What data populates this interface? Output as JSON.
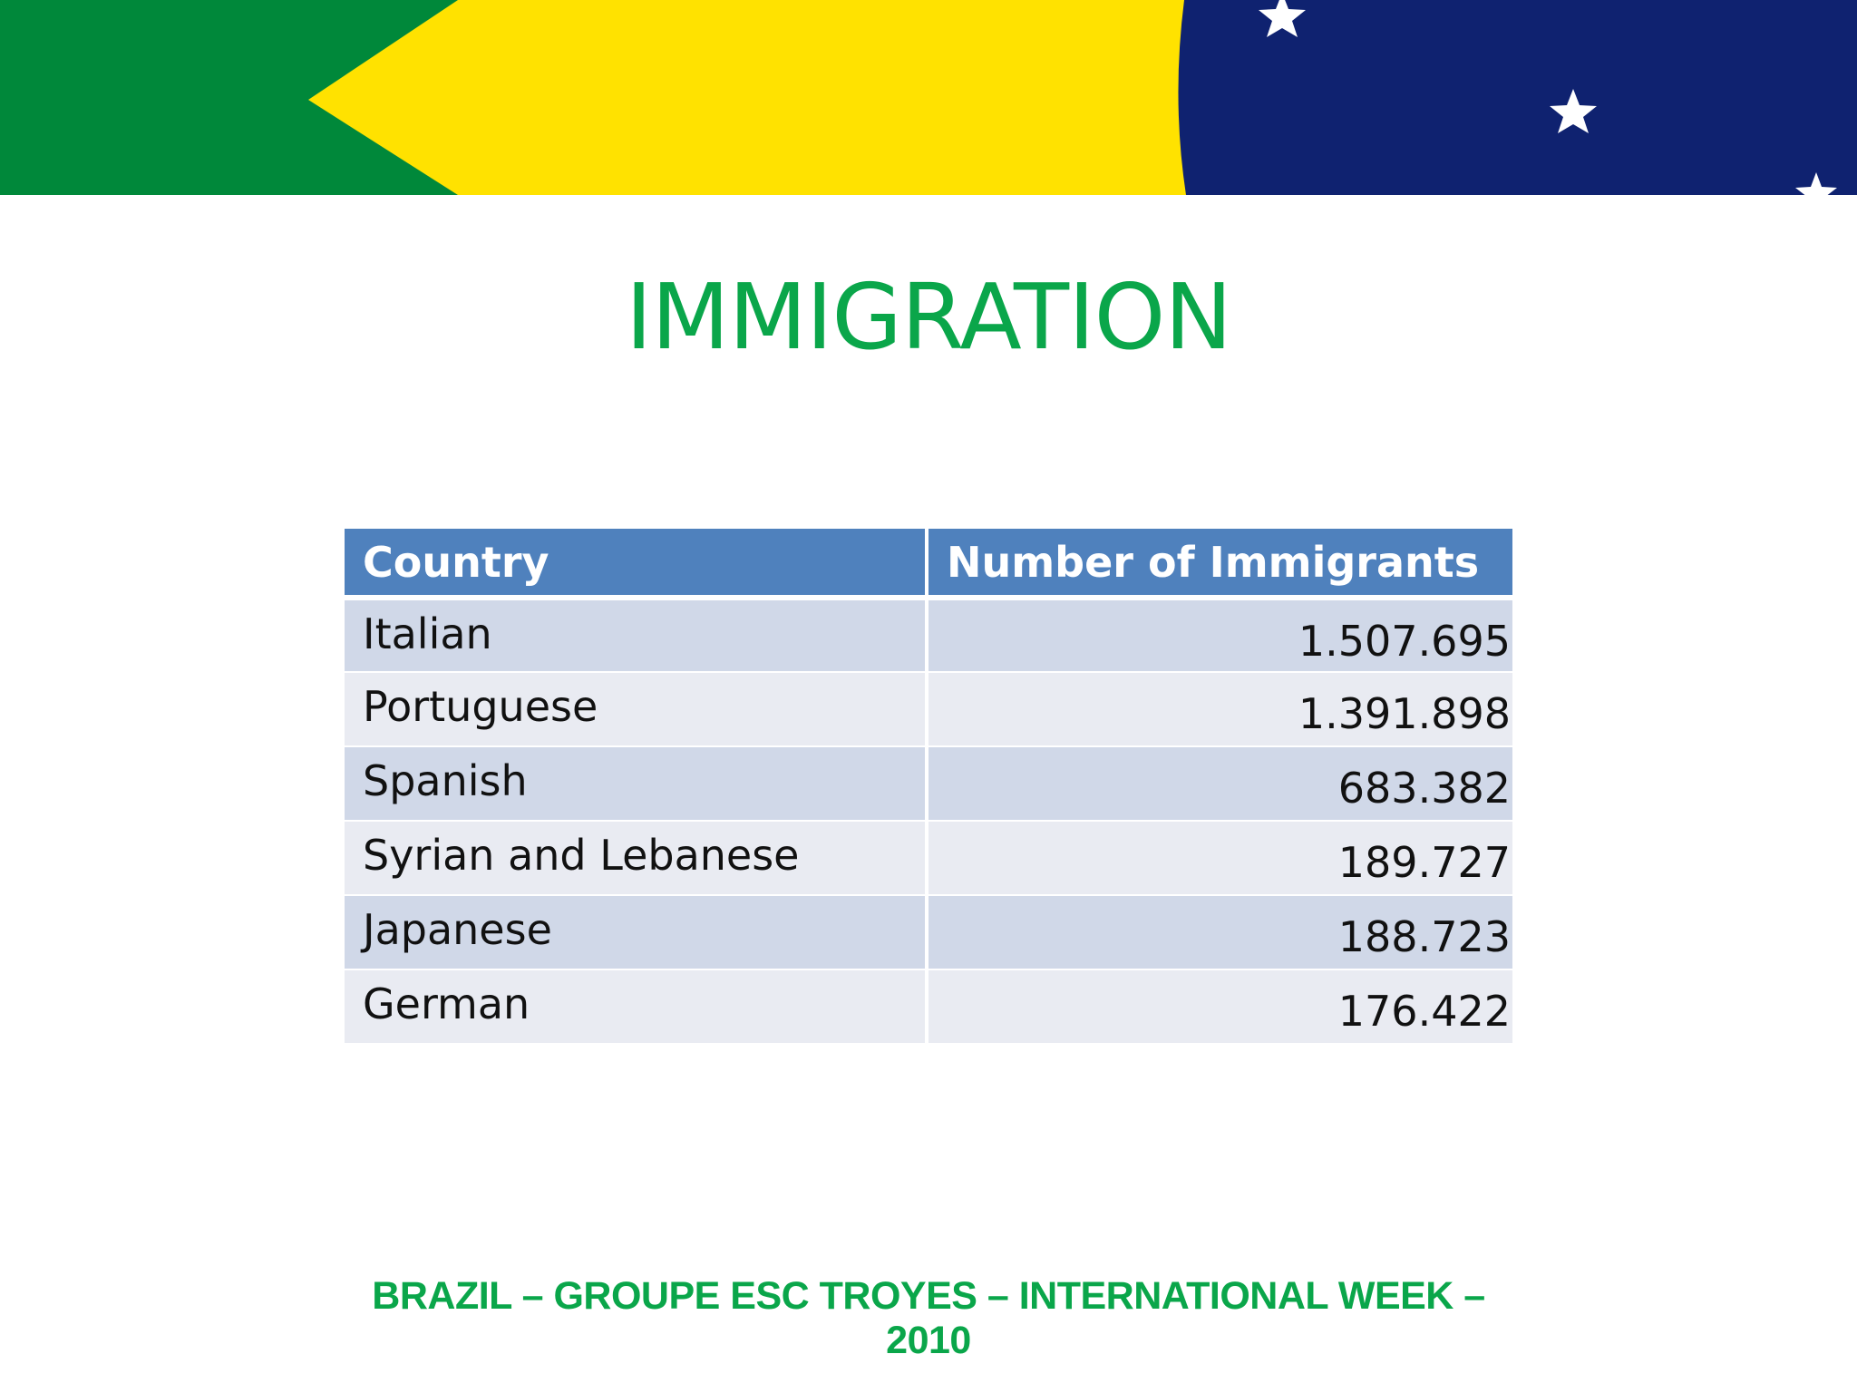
{
  "slide": {
    "title": "IMMIGRATION",
    "footer": "BRAZIL – GROUPE ESC TROYES – INTERNATIONAL WEEK – 2010"
  },
  "table": {
    "headers": [
      "Country",
      "Number of Immigrants"
    ],
    "rows": [
      {
        "country": "Italian",
        "number": "1.507.695"
      },
      {
        "country": "Portuguese",
        "number": "1.391.898"
      },
      {
        "country": "Spanish",
        "number": "683.382"
      },
      {
        "country": "Syrian and Lebanese",
        "number": "189.727"
      },
      {
        "country": "Japanese",
        "number": "188.723"
      },
      {
        "country": "German",
        "number": "176.422"
      }
    ]
  },
  "colors": {
    "title_green": "#0aa64a",
    "footer_green": "#0aa64a",
    "flag_green": "#00883a",
    "flag_yellow": "#ffe200",
    "flag_blue": "#0f2270",
    "header_blue": "#4f81bd",
    "row_dark": "#d0d8e8",
    "row_light": "#e9ebf2"
  },
  "banner": {
    "icons": [
      "star-icon",
      "star-icon",
      "star-icon"
    ]
  }
}
